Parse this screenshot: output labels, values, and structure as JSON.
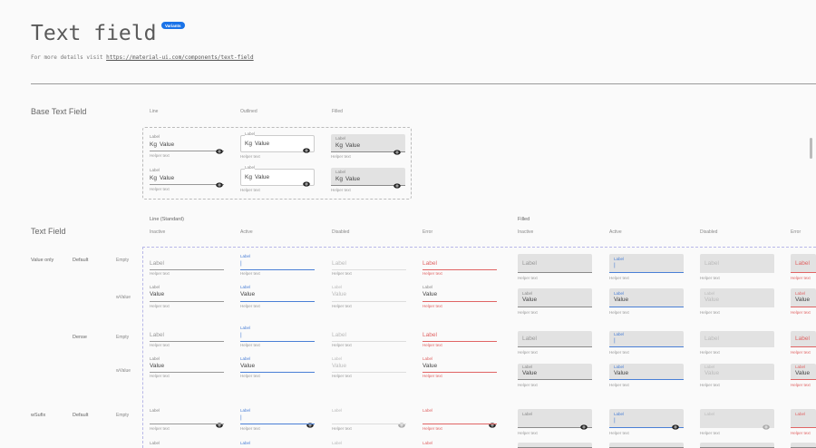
{
  "header": {
    "title": "Text field",
    "badge": "Variants",
    "subtitle_prefix": "For more details visit ",
    "link": "https://material-ui.com/components/text-field"
  },
  "base": {
    "title": "Base Text Field",
    "columns": [
      "Line",
      "Outlined",
      "Filled"
    ],
    "label": "Label",
    "prefix": "Kg",
    "value": "Value",
    "helper": "Helper text",
    "suffix_icon": "eye-icon"
  },
  "text_field": {
    "title": "Text Field",
    "groups": [
      "Line (Standard)",
      "Filled"
    ],
    "states": [
      "Inactive",
      "Active",
      "Disabled",
      "Error"
    ],
    "row_labels": [
      {
        "type": "Value only",
        "density": "Default",
        "content": "Empty"
      },
      {
        "content": "wValue"
      },
      {
        "density": "Dense",
        "content": "Empty"
      },
      {
        "content": "wValue"
      },
      {
        "type": "wSufix",
        "density": "Default",
        "content": "Empty"
      }
    ],
    "field": {
      "label": "Label",
      "value": "Value",
      "helper": "Helper text",
      "cursor": "|"
    }
  },
  "colors": {
    "accent": "#4a7fd6",
    "error": "#e06464",
    "badge": "#1a73e8",
    "fill": "#e2e2e2"
  }
}
